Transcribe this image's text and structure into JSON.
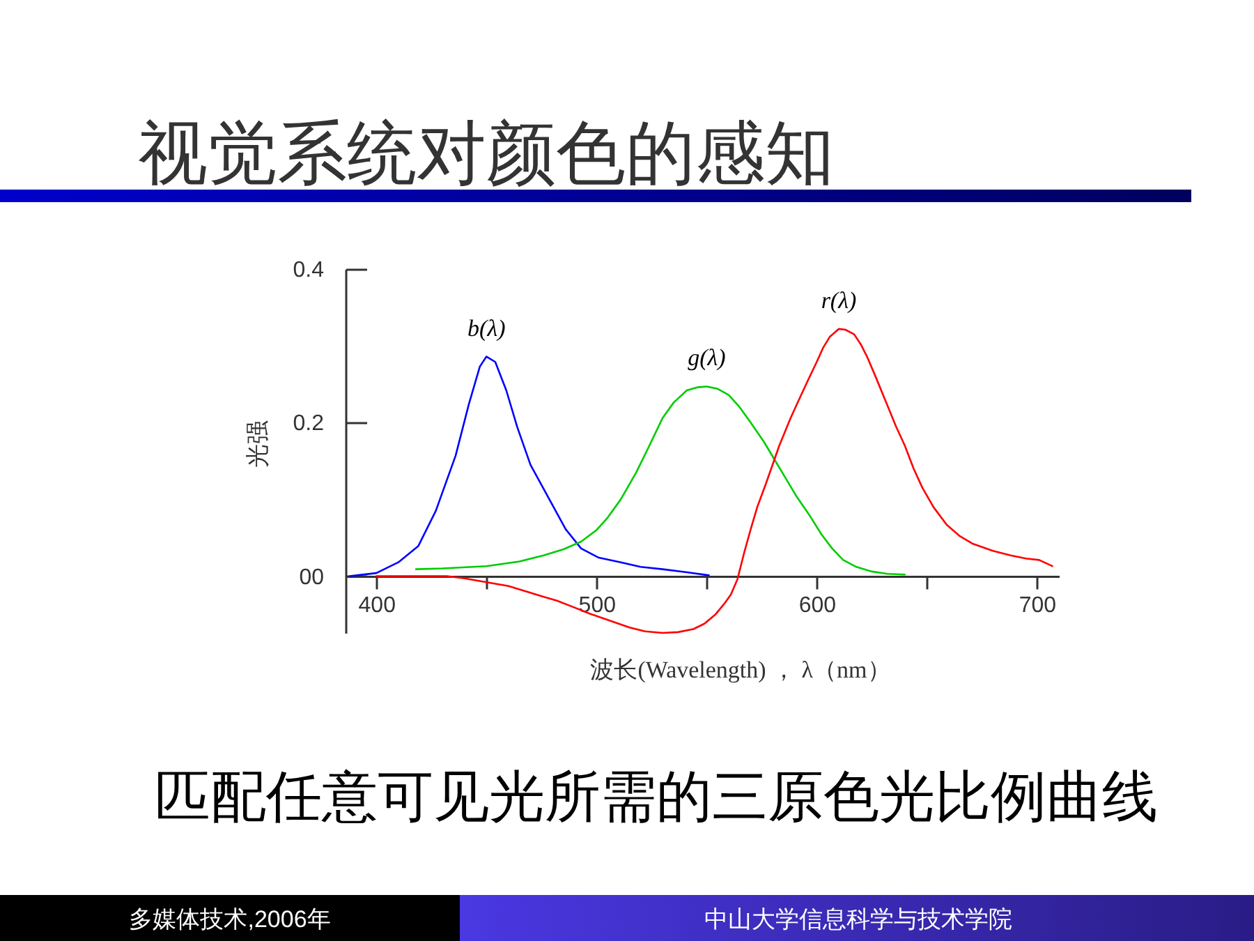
{
  "chart_data": {
    "type": "line",
    "title": "视觉系统对颜色的感知",
    "xlabel": "波长(Wavelength) ， λ（nm）",
    "ylabel": "光强",
    "annotations": [
      "匹配任意可见光所需的三原色光比例曲线",
      "多媒体技术,2006年",
      "中山大学信息科学与技术学院"
    ],
    "xlim": [
      386,
      710
    ],
    "ylim": [
      -0.074,
      0.4
    ],
    "xticks": [
      400,
      {
        "value": 450,
        "label": null
      },
      500,
      {
        "value": 550,
        "label": null
      },
      600,
      {
        "value": 650,
        "label": null
      },
      700
    ],
    "yticks": [
      {
        "value": 0,
        "label": "00"
      },
      0.2,
      0.4
    ],
    "series": [
      {
        "name": "b(λ)",
        "color": "#0000ff",
        "x": [
          388,
          400,
          410,
          419,
          427,
          436,
          442,
          447,
          450,
          454,
          459,
          464,
          470,
          478,
          486,
          493,
          501,
          511,
          520,
          530,
          541,
          551
        ],
        "values": [
          0,
          0.004,
          0.018,
          0.039,
          0.085,
          0.157,
          0.224,
          0.273,
          0.286,
          0.279,
          0.242,
          0.194,
          0.145,
          0.103,
          0.061,
          0.036,
          0.024,
          0.018,
          0.012,
          0.009,
          0.005,
          0.001
        ]
      },
      {
        "name": "g(λ)",
        "color": "#00cc00",
        "x": [
          418,
          430,
          450,
          465,
          476,
          485,
          493,
          500,
          505,
          511,
          518,
          524,
          530,
          535,
          541,
          546,
          550,
          555,
          560,
          565,
          570,
          576,
          581,
          586,
          591,
          597,
          602,
          607,
          612,
          618,
          625,
          632,
          640
        ],
        "values": [
          0.009,
          0.01,
          0.013,
          0.019,
          0.027,
          0.035,
          0.045,
          0.06,
          0.076,
          0.1,
          0.135,
          0.17,
          0.206,
          0.226,
          0.242,
          0.246,
          0.247,
          0.244,
          0.236,
          0.22,
          0.2,
          0.175,
          0.151,
          0.127,
          0.103,
          0.078,
          0.055,
          0.036,
          0.021,
          0.012,
          0.006,
          0.003,
          0.002
        ]
      },
      {
        "name": "r(λ)",
        "color": "#ff0000",
        "x": [
          400,
          420,
          432,
          440,
          450,
          460,
          468,
          476,
          482,
          490,
          497,
          505,
          515,
          522,
          530,
          537,
          544,
          549,
          554,
          558,
          561,
          564,
          567,
          570,
          573,
          577,
          583,
          588,
          591,
          596,
          600,
          603,
          606,
          610,
          613,
          617,
          620,
          623,
          627,
          631,
          636,
          640,
          644,
          648,
          653,
          659,
          665,
          671,
          680,
          688,
          695,
          701,
          707
        ],
        "values": [
          0,
          0,
          0,
          -0.003,
          -0.008,
          -0.013,
          -0.02,
          -0.027,
          -0.032,
          -0.041,
          -0.049,
          -0.057,
          -0.067,
          -0.072,
          -0.074,
          -0.073,
          -0.069,
          -0.062,
          -0.05,
          -0.036,
          -0.024,
          -0.004,
          0.03,
          0.061,
          0.09,
          0.121,
          0.17,
          0.205,
          0.224,
          0.255,
          0.279,
          0.298,
          0.312,
          0.322,
          0.321,
          0.315,
          0.302,
          0.285,
          0.258,
          0.23,
          0.195,
          0.17,
          0.14,
          0.115,
          0.09,
          0.067,
          0.052,
          0.042,
          0.033,
          0.027,
          0.023,
          0.021,
          0.013
        ]
      }
    ]
  }
}
